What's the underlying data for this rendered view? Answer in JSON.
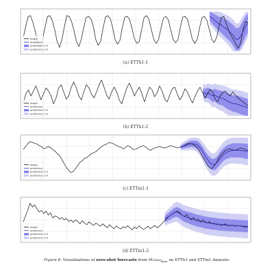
{
  "caption": {
    "label": "Figure 8.",
    "part1": "Visualizations of",
    "bold": "zero-shot forecasts",
    "part2": "from",
    "model": "Moirai",
    "model_sub": "Base",
    "part3": "on ETTh1 and ETTm1 datasets."
  },
  "colors": {
    "target": "#111111",
    "prediction": "#3a2fa8",
    "band_inner": "#7b78e8",
    "band_outer": "#c9c8f3",
    "grid": "#dddddd",
    "frame": "#888888"
  },
  "chart_data": [
    {
      "type": "line",
      "title": "(a) ETTh1-1",
      "legend": [
        "target",
        "prediction",
        "prediction: 0.5",
        "prediction: 0.9"
      ],
      "legend_position": "bottom-left",
      "grid": true,
      "x_range": [
        0,
        100
      ],
      "y_range": [
        0,
        1
      ],
      "forecast_start": 83,
      "target": [
        0.35,
        0.62,
        0.88,
        0.9,
        0.72,
        0.5,
        0.2,
        0.1,
        0.32,
        0.6,
        0.88,
        0.9,
        0.78,
        0.55,
        0.25,
        0.1,
        0.3,
        0.62,
        0.9,
        0.88,
        0.75,
        0.52,
        0.25,
        0.12,
        0.3,
        0.6,
        0.85,
        0.88,
        0.82,
        0.62,
        0.3,
        0.15,
        0.25,
        0.58,
        0.86,
        0.9,
        0.82,
        0.6,
        0.3,
        0.18,
        0.28,
        0.6,
        0.86,
        0.88,
        0.8,
        0.58,
        0.32,
        0.2,
        0.25,
        0.55,
        0.85,
        0.9,
        0.8,
        0.55,
        0.3,
        0.2,
        0.3,
        0.58,
        0.84,
        0.88,
        0.8,
        0.55,
        0.3,
        0.22,
        0.28,
        0.6,
        0.86,
        0.88,
        0.8,
        0.55,
        0.3,
        0.2,
        0.3,
        0.6,
        0.85,
        0.88,
        0.78,
        0.55,
        0.3,
        0.22,
        0.35,
        0.62,
        0.85,
        0.88,
        0.7,
        0.52,
        0.4,
        0.3,
        0.18,
        0.08,
        0.22,
        0.55,
        0.75,
        0.72
      ],
      "prediction": [
        0.88,
        0.82,
        0.76,
        0.7,
        0.66,
        0.6,
        0.55,
        0.48,
        0.4,
        0.3,
        0.32,
        0.45,
        0.6,
        0.72
      ],
      "band_inner": [
        0.12,
        0.14,
        0.16,
        0.18,
        0.2,
        0.22,
        0.24,
        0.24,
        0.26,
        0.28,
        0.28,
        0.28,
        0.26,
        0.24
      ],
      "band_outer": [
        0.2,
        0.22,
        0.26,
        0.3,
        0.32,
        0.34,
        0.36,
        0.38,
        0.4,
        0.4,
        0.4,
        0.4,
        0.38,
        0.36
      ]
    },
    {
      "type": "line",
      "title": "(b) ETTh1-2",
      "legend": [
        "target",
        "prediction",
        "prediction: 0.5",
        "prediction: 0.9"
      ],
      "legend_position": "bottom-left",
      "grid": true,
      "x_range": [
        0,
        100
      ],
      "y_range": [
        0,
        1
      ],
      "forecast_start": 80,
      "target": [
        0.3,
        0.55,
        0.65,
        0.5,
        0.62,
        0.75,
        0.58,
        0.4,
        0.55,
        0.7,
        0.62,
        0.5,
        0.3,
        0.45,
        0.7,
        0.78,
        0.6,
        0.42,
        0.5,
        0.72,
        0.85,
        0.7,
        0.5,
        0.4,
        0.6,
        0.78,
        0.7,
        0.55,
        0.45,
        0.6,
        0.78,
        0.9,
        0.72,
        0.52,
        0.42,
        0.6,
        0.72,
        0.6,
        0.4,
        0.3,
        0.5,
        0.7,
        0.82,
        0.68,
        0.5,
        0.62,
        0.72,
        0.55,
        0.35,
        0.55,
        0.72,
        0.65,
        0.48,
        0.58,
        0.75,
        0.62,
        0.42,
        0.35,
        0.52,
        0.68,
        0.72,
        0.55,
        0.4,
        0.5,
        0.68,
        0.6,
        0.45,
        0.32,
        0.48,
        0.62,
        0.72,
        0.58,
        0.45,
        0.55,
        0.66,
        0.6,
        0.42,
        0.35,
        0.5,
        0.58,
        0.62,
        0.55,
        0.5,
        0.6,
        0.52,
        0.45,
        0.4,
        0.35,
        0.3,
        0.25
      ],
      "prediction": [
        0.6,
        0.55,
        0.58,
        0.54,
        0.5,
        0.52,
        0.48,
        0.46,
        0.44,
        0.42,
        0.38,
        0.35,
        0.32,
        0.3,
        0.3,
        0.28,
        0.26,
        0.24,
        0.22,
        0.2
      ],
      "band_inner": [
        0.1,
        0.12,
        0.13,
        0.14,
        0.15,
        0.16,
        0.17,
        0.18,
        0.18,
        0.19,
        0.2,
        0.2,
        0.2,
        0.21,
        0.21,
        0.22,
        0.22,
        0.22,
        0.22,
        0.22
      ],
      "band_outer": [
        0.2,
        0.22,
        0.24,
        0.26,
        0.28,
        0.3,
        0.3,
        0.32,
        0.32,
        0.34,
        0.34,
        0.35,
        0.35,
        0.36,
        0.36,
        0.36,
        0.37,
        0.37,
        0.38,
        0.38
      ]
    },
    {
      "type": "line",
      "title": "(c) ETTm1-1",
      "legend": [
        "target",
        "prediction",
        "prediction: 0.5",
        "prediction: 0.9"
      ],
      "legend_position": "bottom-left",
      "grid": true,
      "x_range": [
        0,
        100
      ],
      "y_range": [
        0,
        1
      ],
      "forecast_start": 70,
      "target": [
        0.7,
        0.78,
        0.85,
        0.9,
        0.88,
        0.86,
        0.84,
        0.8,
        0.78,
        0.72,
        0.74,
        0.78,
        0.75,
        0.7,
        0.66,
        0.6,
        0.55,
        0.45,
        0.35,
        0.25,
        0.18,
        0.12,
        0.15,
        0.22,
        0.3,
        0.38,
        0.42,
        0.48,
        0.5,
        0.55,
        0.6,
        0.62,
        0.65,
        0.7,
        0.75,
        0.8,
        0.82,
        0.85,
        0.88,
        0.86,
        0.84,
        0.8,
        0.78,
        0.76,
        0.72,
        0.75,
        0.8,
        0.78,
        0.72,
        0.7,
        0.72,
        0.76,
        0.78,
        0.8,
        0.76,
        0.72,
        0.68,
        0.72,
        0.74,
        0.76,
        0.78,
        0.76,
        0.74,
        0.75,
        0.78,
        0.8,
        0.78,
        0.76,
        0.74,
        0.76,
        0.78,
        0.8,
        0.84,
        0.86,
        0.85,
        0.82,
        0.78,
        0.72,
        0.62,
        0.52,
        0.42,
        0.32,
        0.25,
        0.22,
        0.28,
        0.36,
        0.48,
        0.56,
        0.62,
        0.68,
        0.7,
        0.72,
        0.7,
        0.68,
        0.7,
        0.72,
        0.74,
        0.72,
        0.7,
        0.68
      ],
      "prediction": [
        0.76,
        0.78,
        0.8,
        0.82,
        0.84,
        0.85,
        0.84,
        0.82,
        0.78,
        0.7,
        0.6,
        0.5,
        0.42,
        0.35,
        0.32,
        0.34,
        0.4,
        0.48,
        0.55,
        0.6,
        0.64,
        0.66,
        0.68,
        0.68,
        0.68,
        0.68,
        0.68,
        0.67,
        0.66,
        0.66
      ],
      "band_inner": [
        0.04,
        0.05,
        0.06,
        0.07,
        0.08,
        0.08,
        0.09,
        0.1,
        0.1,
        0.11,
        0.12,
        0.12,
        0.13,
        0.14,
        0.14,
        0.15,
        0.15,
        0.16,
        0.16,
        0.16,
        0.17,
        0.17,
        0.17,
        0.18,
        0.18,
        0.18,
        0.18,
        0.18,
        0.19,
        0.19
      ],
      "band_outer": [
        0.08,
        0.1,
        0.12,
        0.14,
        0.15,
        0.16,
        0.17,
        0.18,
        0.2,
        0.22,
        0.24,
        0.26,
        0.27,
        0.28,
        0.28,
        0.29,
        0.3,
        0.3,
        0.31,
        0.31,
        0.32,
        0.32,
        0.33,
        0.33,
        0.34,
        0.34,
        0.34,
        0.35,
        0.35,
        0.35
      ]
    },
    {
      "type": "line",
      "title": "(d) ETTm1-2",
      "legend": [
        "target",
        "prediction",
        "prediction: 0.5",
        "prediction: 0.9"
      ],
      "legend_position": "bottom-left",
      "grid": true,
      "x_range": [
        0,
        100
      ],
      "y_range": [
        0,
        1
      ],
      "forecast_start": 63,
      "target": [
        0.45,
        0.6,
        0.75,
        0.92,
        0.82,
        0.88,
        0.78,
        0.7,
        0.74,
        0.66,
        0.72,
        0.62,
        0.68,
        0.55,
        0.6,
        0.58,
        0.52,
        0.56,
        0.5,
        0.54,
        0.46,
        0.5,
        0.44,
        0.5,
        0.46,
        0.4,
        0.48,
        0.42,
        0.38,
        0.45,
        0.4,
        0.36,
        0.42,
        0.38,
        0.34,
        0.4,
        0.35,
        0.3,
        0.38,
        0.32,
        0.28,
        0.35,
        0.3,
        0.27,
        0.33,
        0.3,
        0.35,
        0.3,
        0.25,
        0.32,
        0.28,
        0.35,
        0.3,
        0.26,
        0.3,
        0.34,
        0.28,
        0.32,
        0.36,
        0.3,
        0.34,
        0.4,
        0.46,
        0.52,
        0.58,
        0.62,
        0.66,
        0.7,
        0.72,
        0.68,
        0.62,
        0.58,
        0.64,
        0.55,
        0.5,
        0.56,
        0.48,
        0.52,
        0.44,
        0.5,
        0.46,
        0.42,
        0.46,
        0.4,
        0.42,
        0.38,
        0.4,
        0.36,
        0.38,
        0.4,
        0.36,
        0.35,
        0.37,
        0.34,
        0.36,
        0.35,
        0.34,
        0.33,
        0.32,
        0.33
      ],
      "prediction": [
        0.52,
        0.56,
        0.6,
        0.64,
        0.68,
        0.7,
        0.68,
        0.64,
        0.6,
        0.58,
        0.56,
        0.54,
        0.52,
        0.5,
        0.48,
        0.47,
        0.46,
        0.44,
        0.43,
        0.42,
        0.41,
        0.4,
        0.4,
        0.39,
        0.38,
        0.38,
        0.37,
        0.37,
        0.36,
        0.36,
        0.36,
        0.35,
        0.35,
        0.35,
        0.34,
        0.34,
        0.34
      ],
      "band_inner": [
        0.08,
        0.09,
        0.1,
        0.11,
        0.12,
        0.12,
        0.13,
        0.13,
        0.14,
        0.14,
        0.14,
        0.15,
        0.15,
        0.15,
        0.15,
        0.15,
        0.15,
        0.15,
        0.15,
        0.15,
        0.15,
        0.15,
        0.15,
        0.15,
        0.15,
        0.15,
        0.15,
        0.15,
        0.15,
        0.15,
        0.15,
        0.15,
        0.15,
        0.15,
        0.15,
        0.15,
        0.15
      ],
      "band_outer": [
        0.16,
        0.18,
        0.2,
        0.22,
        0.24,
        0.25,
        0.26,
        0.27,
        0.27,
        0.28,
        0.28,
        0.28,
        0.29,
        0.29,
        0.29,
        0.29,
        0.29,
        0.3,
        0.3,
        0.3,
        0.3,
        0.3,
        0.3,
        0.3,
        0.3,
        0.3,
        0.3,
        0.3,
        0.3,
        0.3,
        0.3,
        0.3,
        0.3,
        0.3,
        0.3,
        0.3,
        0.3
      ]
    }
  ]
}
